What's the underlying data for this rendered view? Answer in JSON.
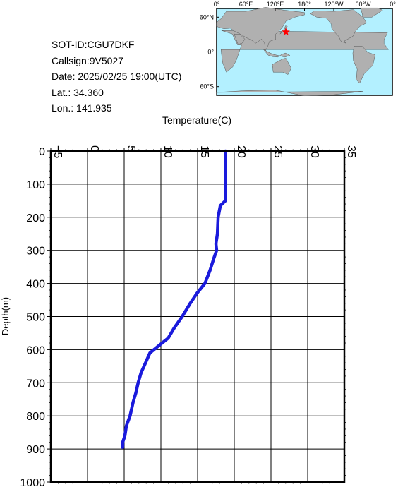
{
  "info": {
    "sot_id": "SOT-ID:CGU7DKF",
    "callsign": "Callsign:9V5027",
    "date": "Date:  2025/02/25 19:00(UTC)",
    "lat": "Lat.:  34.360",
    "lon": "Lon.:  141.935"
  },
  "map": {
    "top_labels": [
      "0°",
      "60°E",
      "120°E",
      "180°",
      "120°W",
      "60°W",
      "0°"
    ],
    "side_labels": [
      "60°N",
      "0°",
      "60°S"
    ],
    "ocean_color": "#b3f0ff",
    "land_color": "#b0b0b0",
    "marker_color": "#ff0000",
    "marker_lat": 34.36,
    "marker_lon": 141.935
  },
  "chart_data": {
    "type": "line",
    "xlabel": "Temperature(C)",
    "ylabel": "Depth(m)",
    "xlim": [
      -5,
      35
    ],
    "ylim": [
      1000,
      0
    ],
    "x_ticks": [
      -5,
      0,
      5,
      10,
      15,
      20,
      25,
      30,
      35
    ],
    "y_ticks": [
      0,
      100,
      200,
      300,
      400,
      500,
      600,
      700,
      800,
      900,
      1000
    ],
    "grid": true,
    "line_color": "#1a1adc",
    "series": [
      {
        "temperature": [
          18.8,
          18.8,
          18.8,
          18.8,
          18.1,
          17.8,
          17.7,
          17.5,
          17.6,
          17.2,
          16.7,
          16.0,
          14.9,
          14.0,
          12.9,
          11.8,
          11.0,
          9.6,
          8.5,
          7.9,
          7.3,
          6.9,
          6.6,
          6.2,
          5.8,
          5.3,
          5.1,
          4.8,
          4.8
        ],
        "depth": [
          0,
          50,
          100,
          150,
          165,
          200,
          250,
          280,
          300,
          325,
          360,
          400,
          430,
          460,
          500,
          535,
          565,
          590,
          610,
          640,
          670,
          700,
          730,
          760,
          800,
          830,
          860,
          880,
          895
        ]
      }
    ]
  }
}
